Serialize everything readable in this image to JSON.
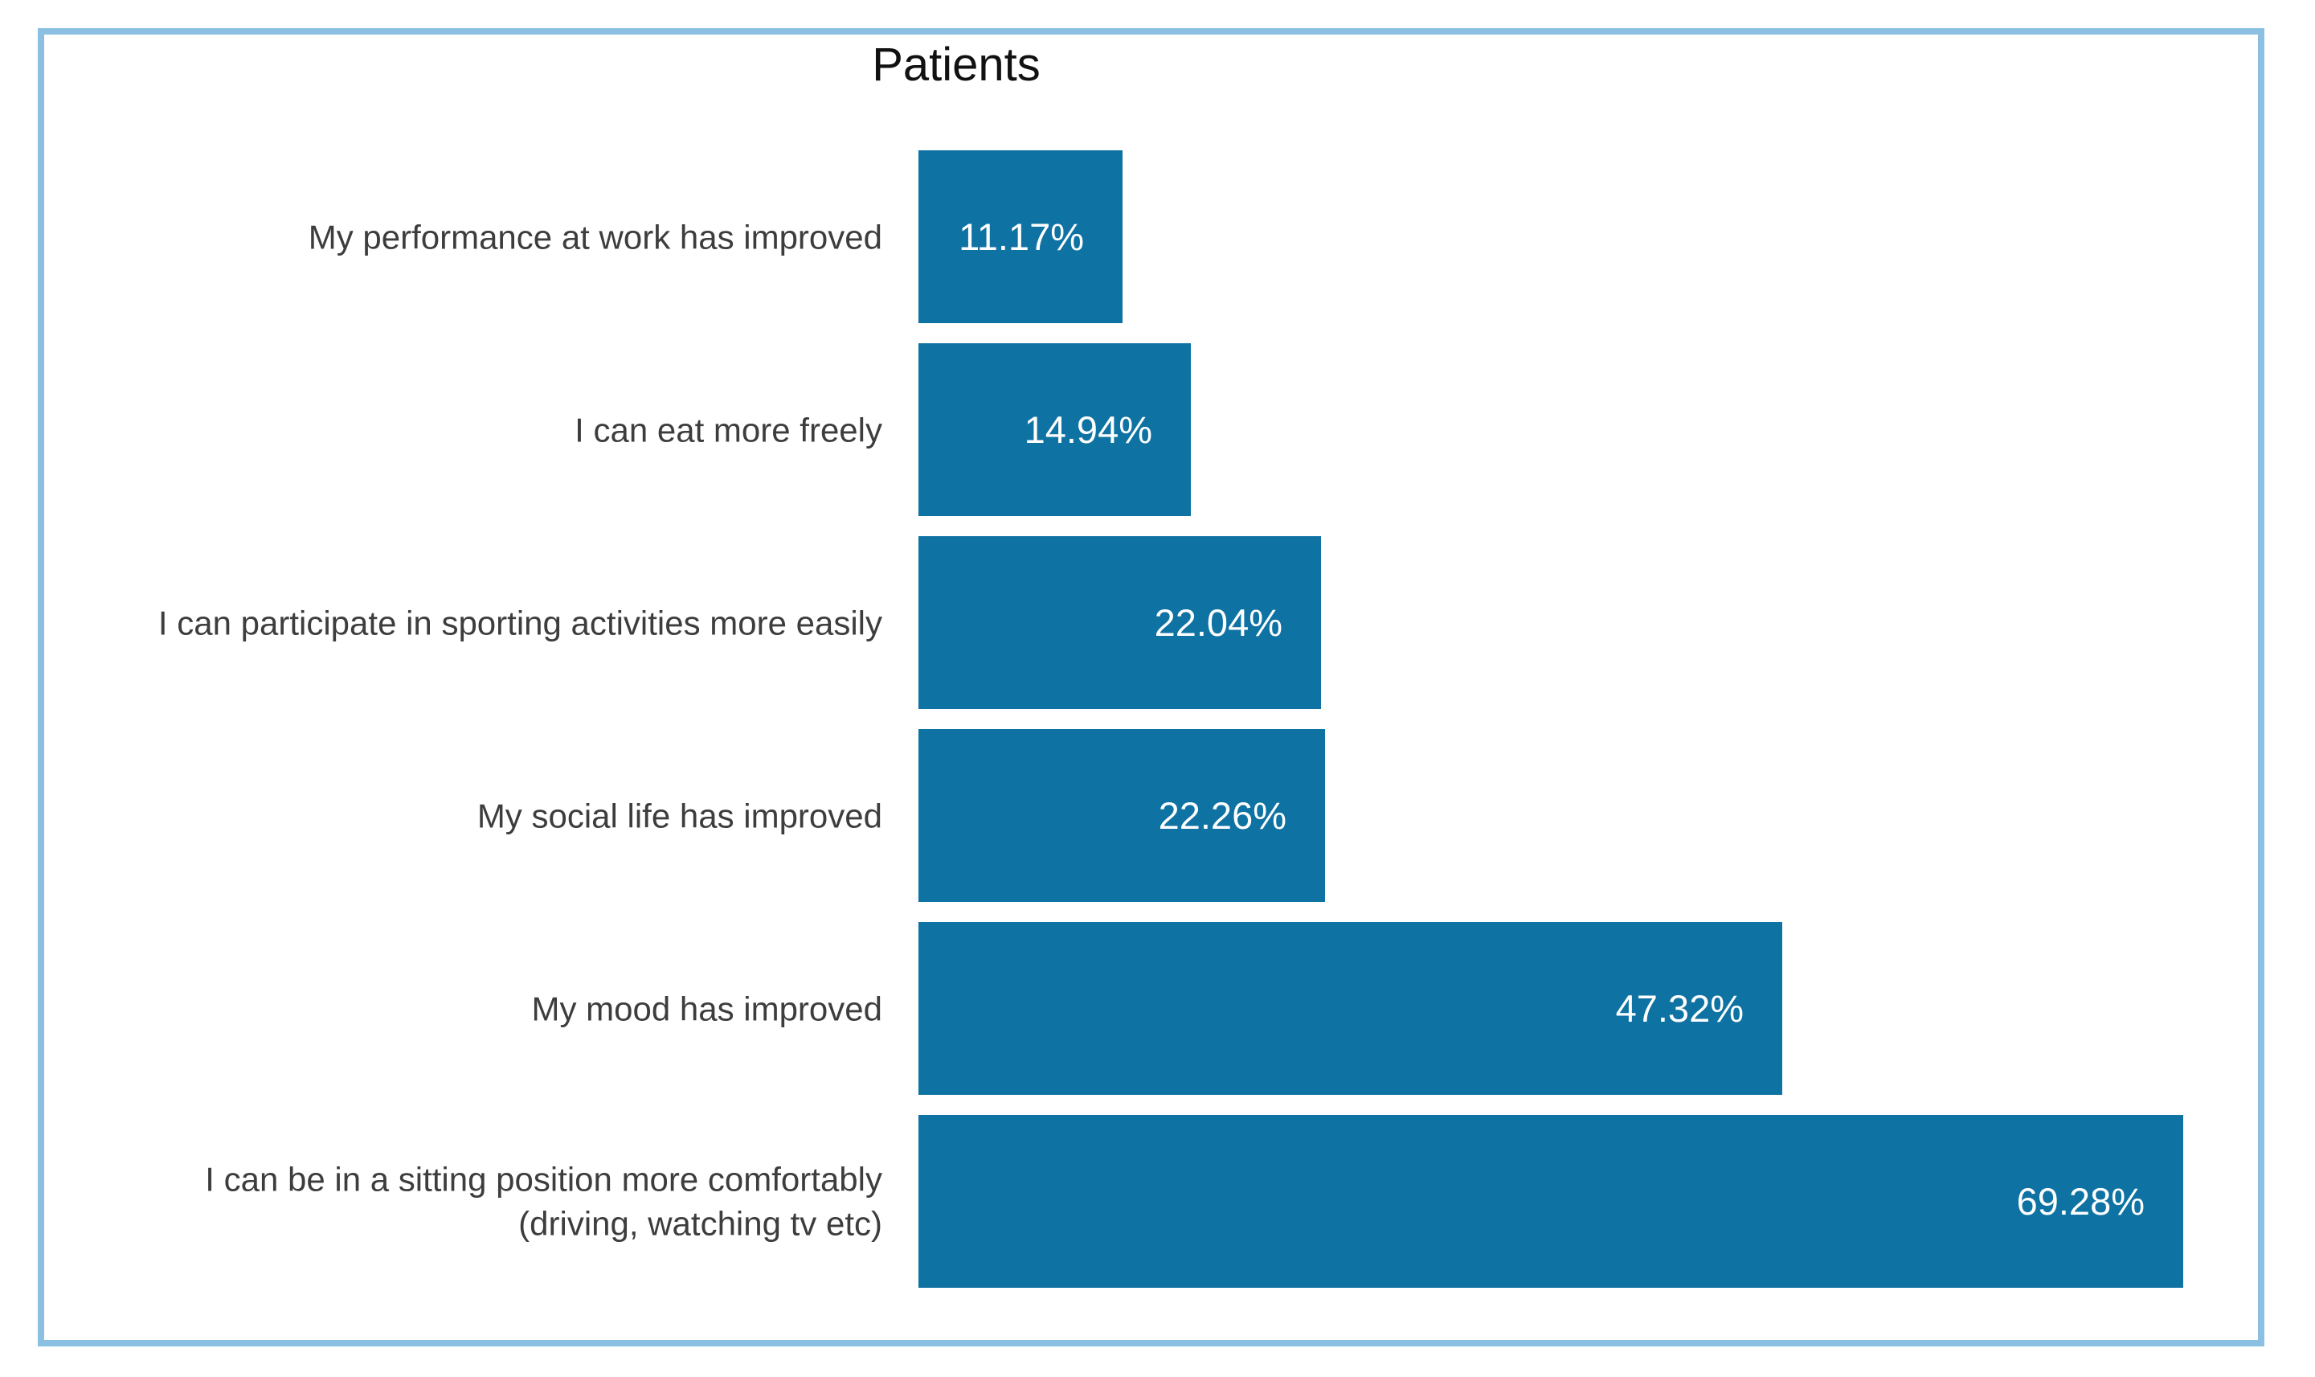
{
  "chart_data": {
    "type": "bar",
    "orientation": "horizontal",
    "title": "Patients",
    "categories": [
      "My performance at work has improved",
      "I can eat more freely",
      "I can participate in sporting activities more easily",
      "My social life has improved",
      "My mood has improved",
      "I can be in a sitting position more comfortably\n(driving, watching tv etc)"
    ],
    "values": [
      11.17,
      14.94,
      22.04,
      22.26,
      47.32,
      69.28
    ],
    "value_labels": [
      "11.17%",
      "14.94%",
      "22.04%",
      "22.26%",
      "47.32%",
      "69.28%"
    ],
    "xlabel": "",
    "ylabel": "",
    "xlim": [
      0,
      73
    ],
    "grid": false,
    "legend": false,
    "value_label_position": "inside-end",
    "colors": {
      "bar": "#0e72a3",
      "frame_border": "#8cc0e2",
      "category_text": "#3d3d3d",
      "value_text": "#ffffff",
      "title_text": "#111111",
      "background": "#ffffff"
    }
  }
}
